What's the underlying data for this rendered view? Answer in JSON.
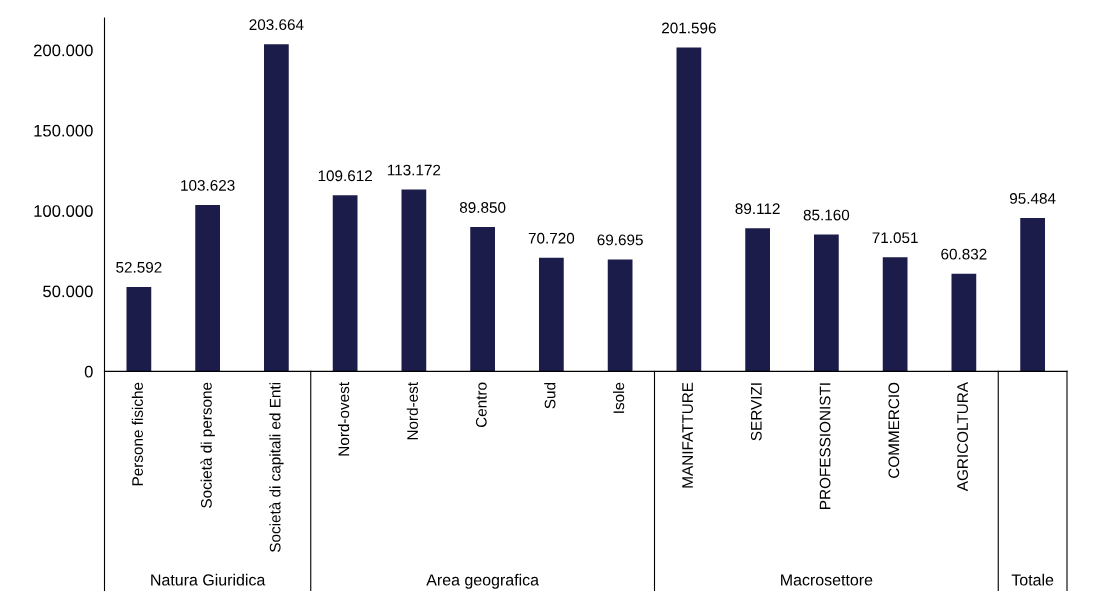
{
  "chart_data": {
    "type": "bar",
    "categories": [
      "Persone fisiche",
      "Società di persone",
      "Società di capitali ed Enti",
      "Nord-ovest",
      "Nord-est",
      "Centro",
      "Sud",
      "Isole",
      "MANIFATTURE",
      "SERVIZI",
      "PROFESSIONISTI",
      "COMMERCIO",
      "AGRICOLTURA",
      null
    ],
    "values": [
      52592,
      103623,
      203664,
      109612,
      113172,
      89850,
      70720,
      69695,
      201596,
      89112,
      85160,
      71051,
      60832,
      95484
    ],
    "value_labels": [
      "52.592",
      "103.623",
      "203.664",
      "109.612",
      "113.172",
      "89.850",
      "70.720",
      "69.695",
      "201.596",
      "89.112",
      "85.160",
      "71.051",
      "60.832",
      "95.484"
    ],
    "color": "#1b1c4a",
    "ylim": [
      0,
      220000
    ],
    "yticks": [
      {
        "value": 0,
        "label": "0"
      },
      {
        "value": 50000,
        "label": "50.000"
      },
      {
        "value": 100000,
        "label": "100.000"
      },
      {
        "value": 150000,
        "label": "150.000"
      },
      {
        "value": 200000,
        "label": "200.000"
      }
    ],
    "annotations": [
      "Natura Giuridica",
      "Area geografica",
      "Macrosettore",
      "Totale"
    ],
    "grid": false
  }
}
